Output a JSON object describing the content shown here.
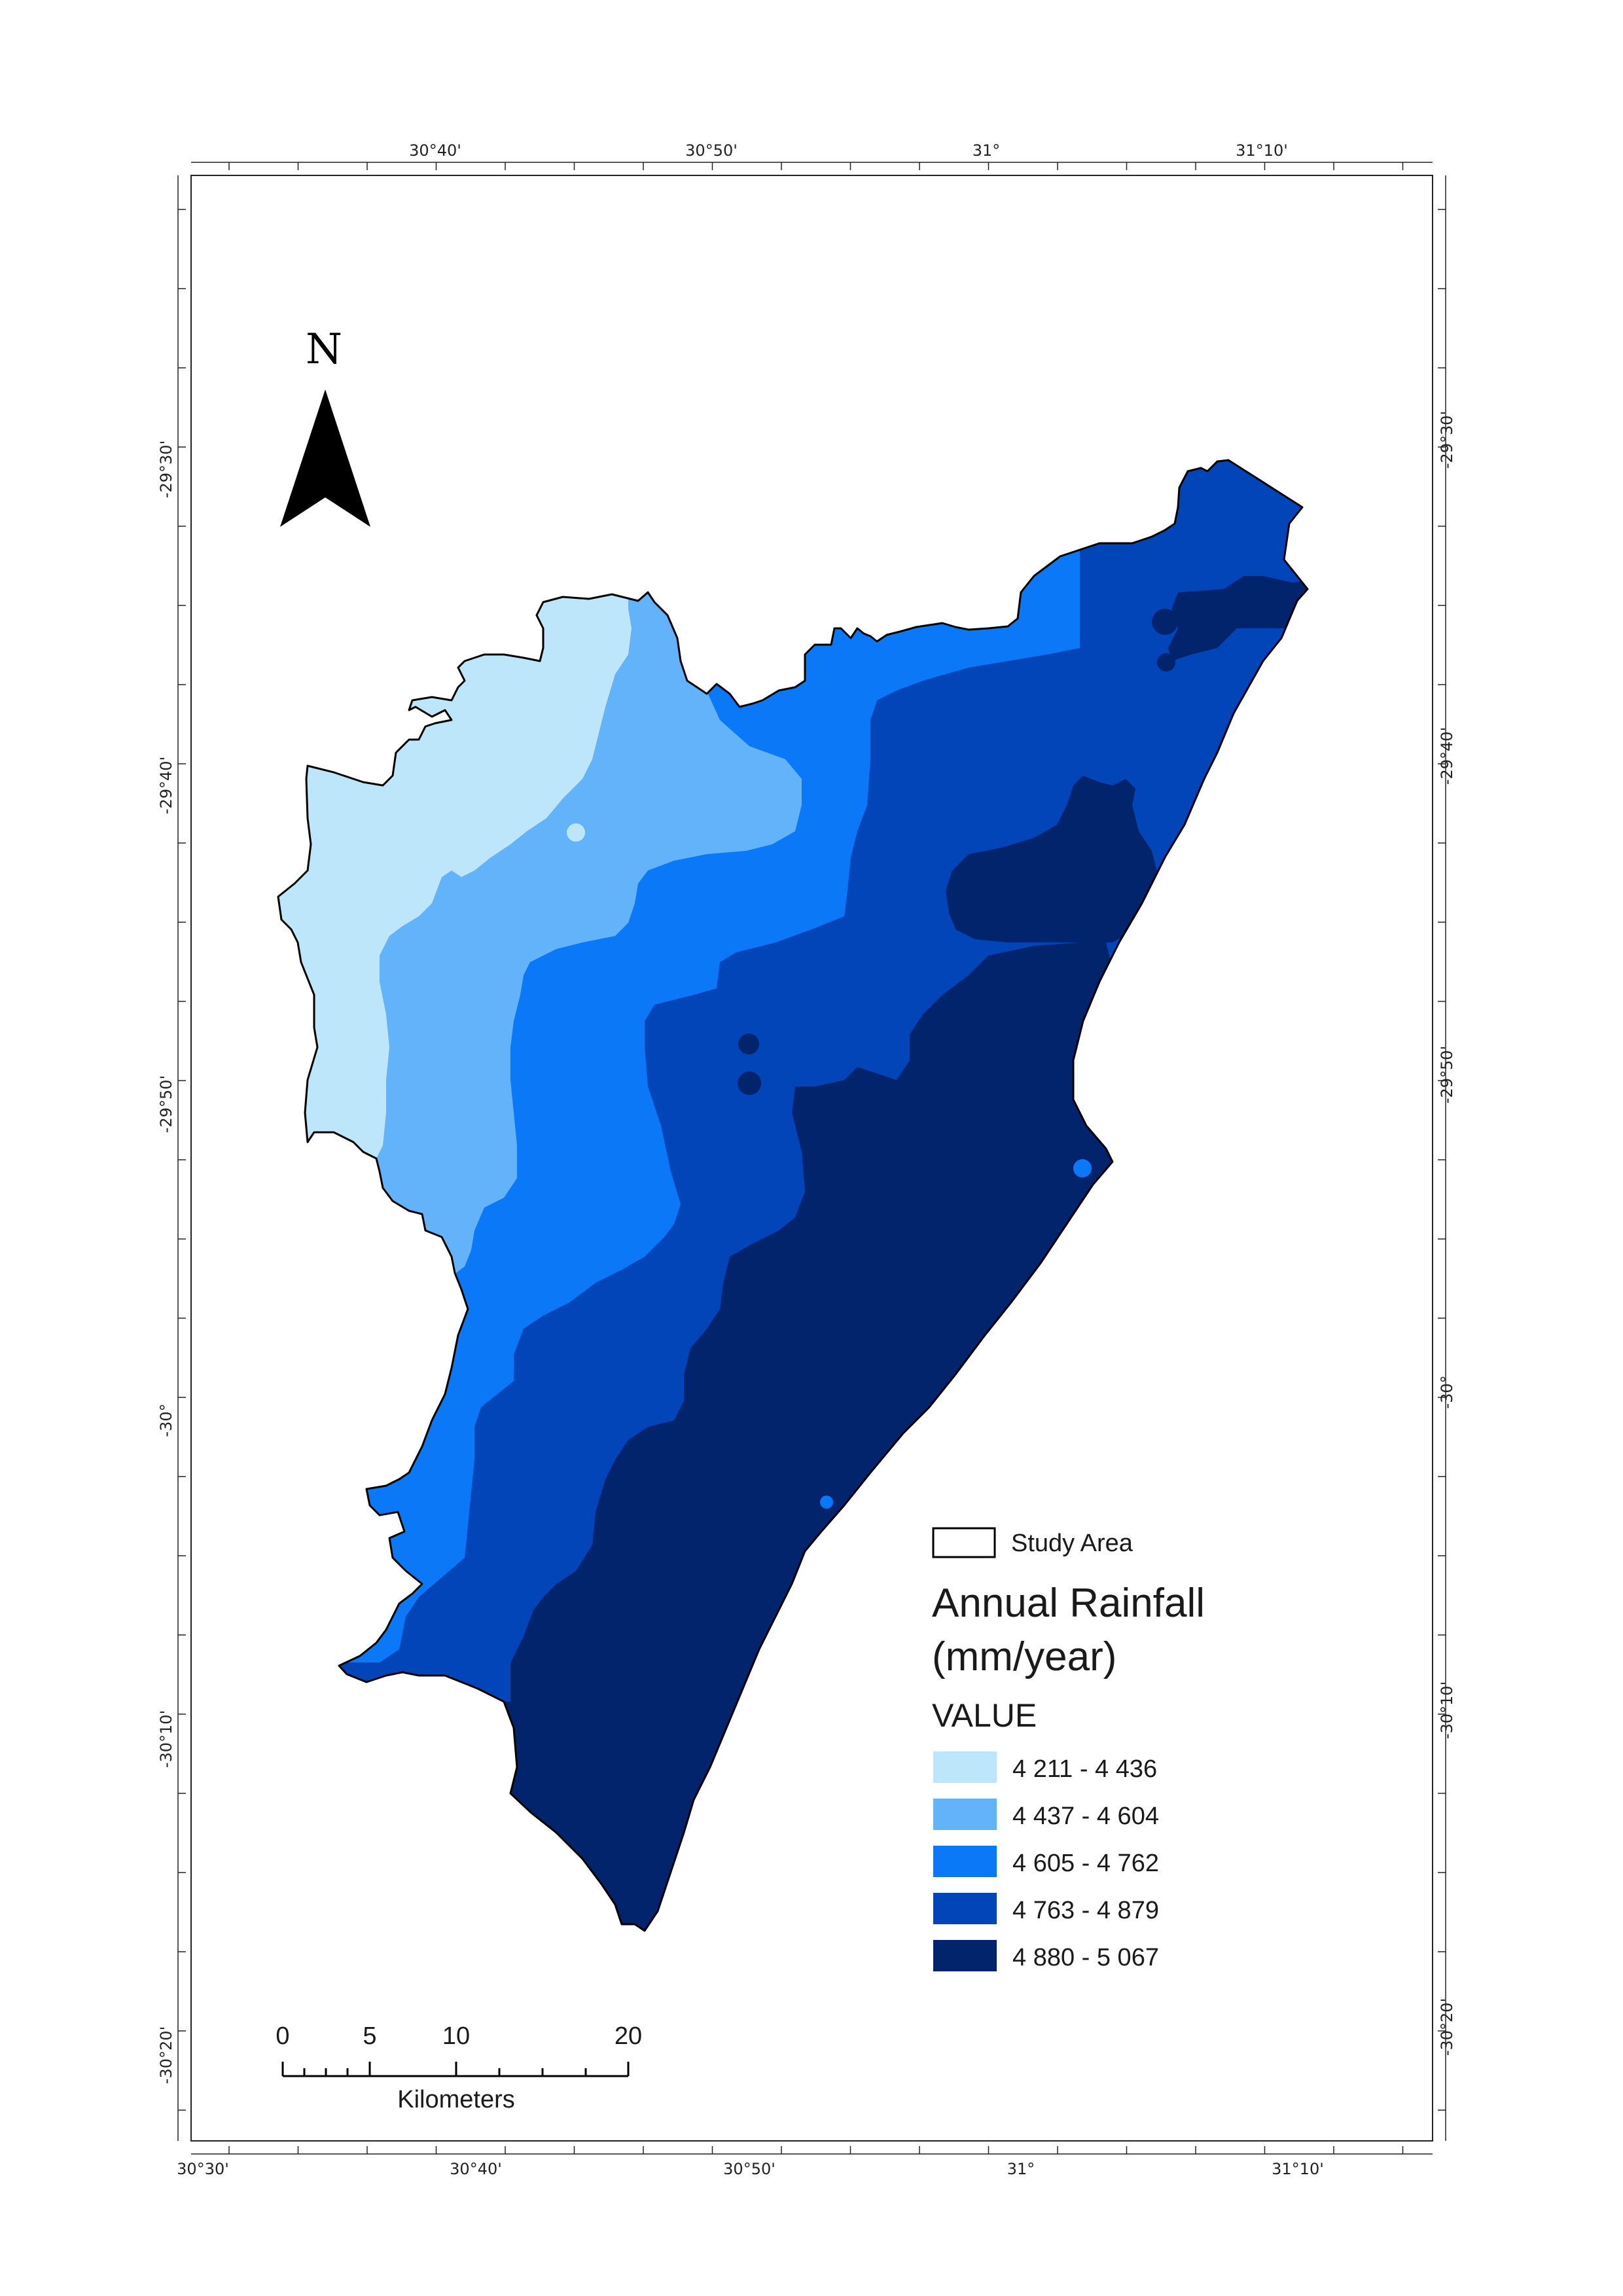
{
  "map": {
    "north_label": "N",
    "legend": {
      "study_area_label": "Study Area",
      "title_line1": "Annual Rainfall",
      "title_line2": "(mm/year)",
      "field_label": "VALUE",
      "classes": [
        {
          "label": "4 211 - 4 436",
          "color": "#bde6fb"
        },
        {
          "label": "4 437 - 4 604",
          "color": "#62b3fa"
        },
        {
          "label": "4 605 - 4 762",
          "color": "#0a78f7"
        },
        {
          "label": "4 763 - 4 879",
          "color": "#0145b8"
        },
        {
          "label": "4 880 - 5 067",
          "color": "#01246c"
        }
      ]
    },
    "scale_bar": {
      "ticks": [
        "0",
        "5",
        "10",
        "20"
      ],
      "unit": "Kilometers"
    },
    "graticule": {
      "top_labels": [
        "30°40'",
        "30°50'",
        "31°",
        "31°10'"
      ],
      "bottom_labels": [
        "30°30'",
        "30°40'",
        "30°50'",
        "31°",
        "31°10'"
      ],
      "left_labels": [
        "-29°30'",
        "-29°40'",
        "-29°50'",
        "-30°",
        "-30°10'",
        "-30°20'"
      ],
      "right_labels": [
        "-29°30'",
        "-29°40'",
        "-29°50'",
        "-30°",
        "-30°10'",
        "-30°20'"
      ]
    }
  }
}
